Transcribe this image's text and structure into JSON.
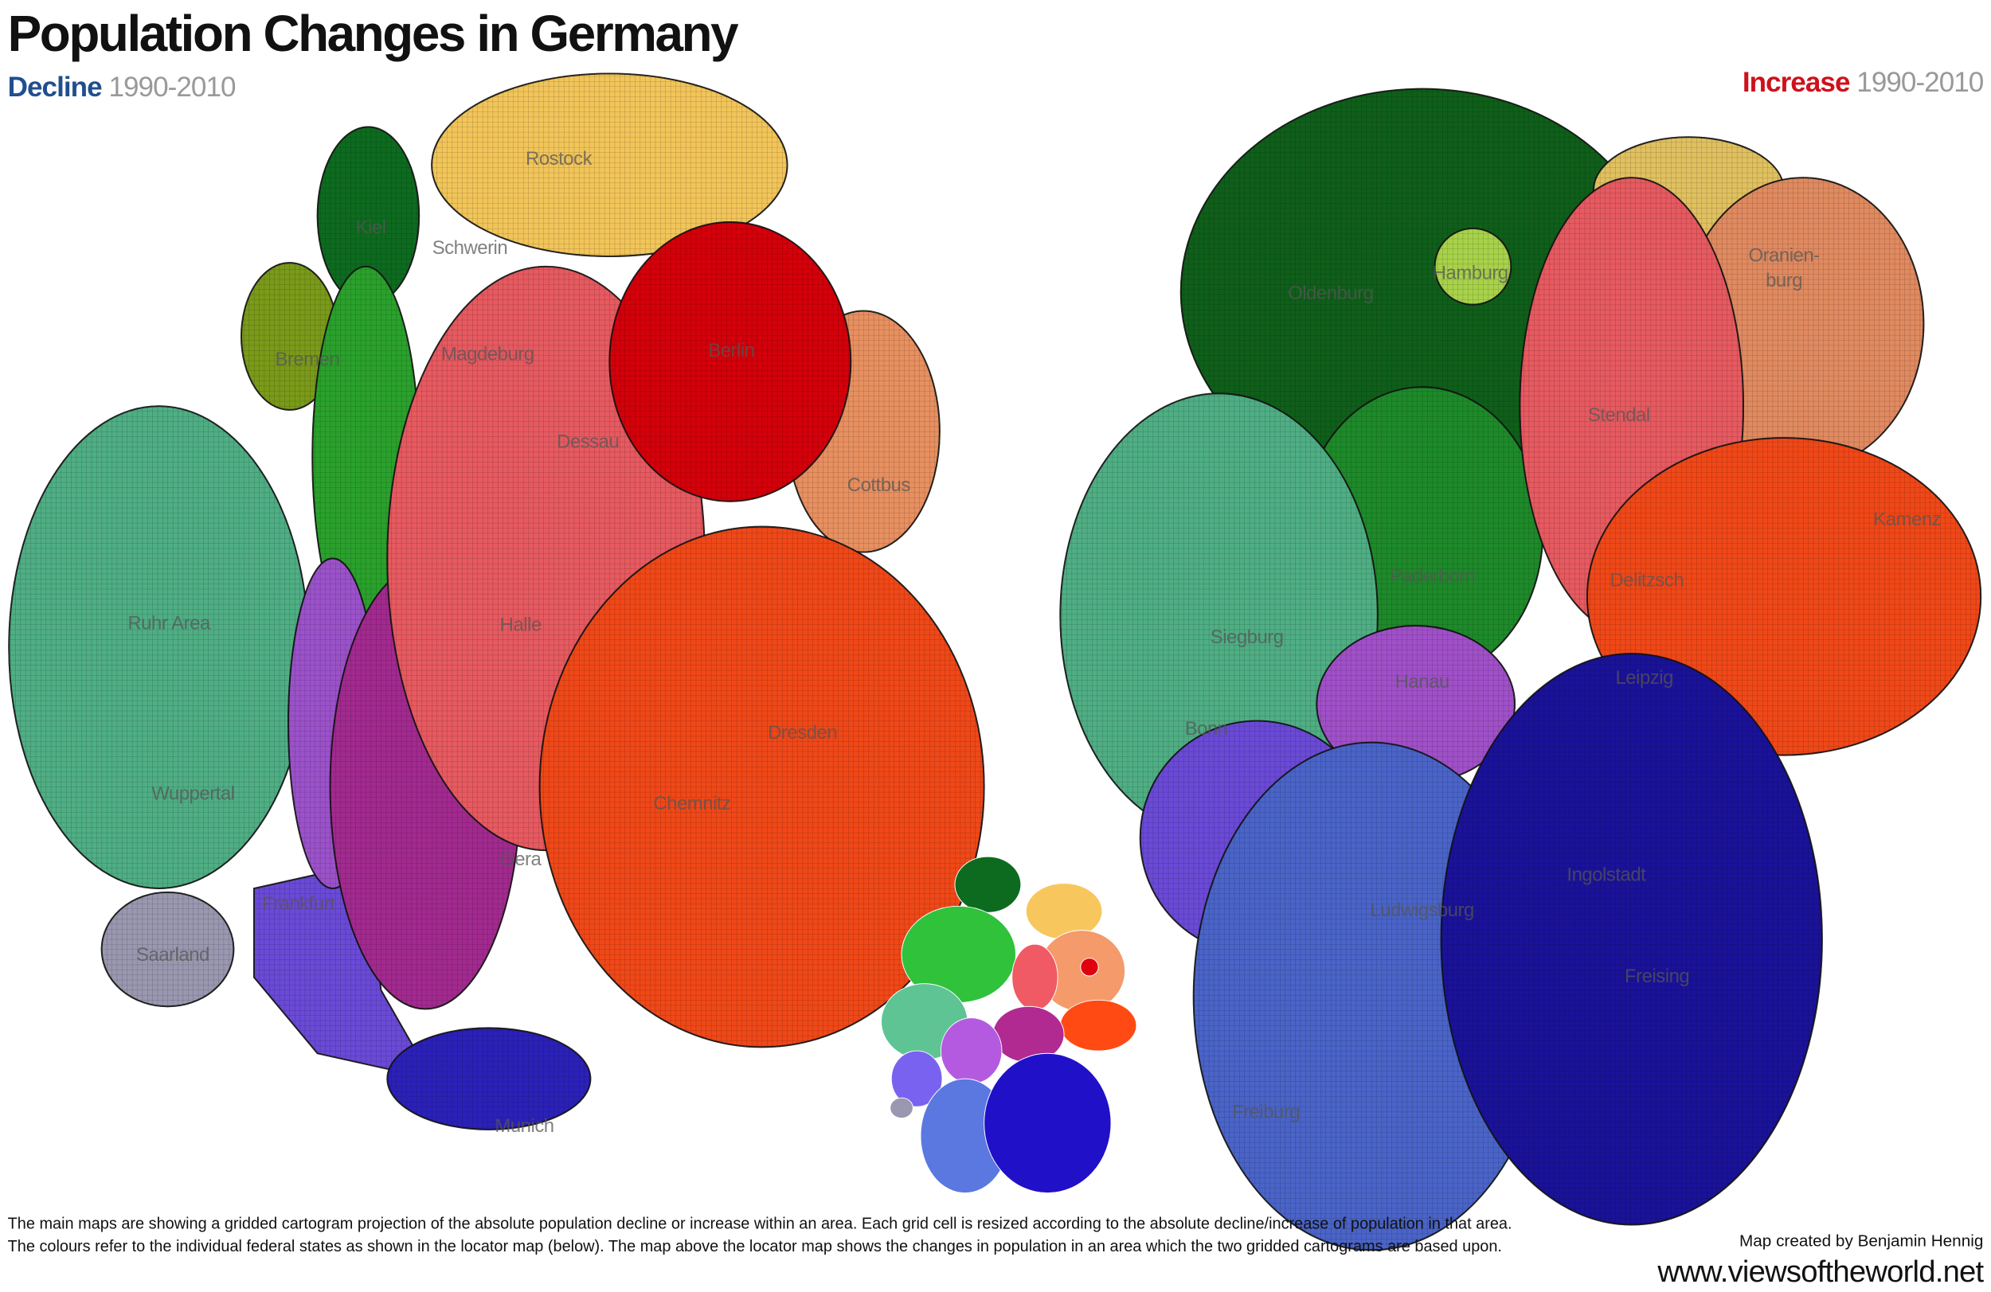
{
  "header": {
    "title": "Population Changes in Germany"
  },
  "decline_map": {
    "label": "Decline",
    "period": "1990-2010",
    "places": [
      "Rostock",
      "Kiel",
      "Schwerin",
      "Bremen",
      "Magdeburg",
      "Berlin",
      "Dessau",
      "Cottbus",
      "Ruhr Area",
      "Halle",
      "Dresden",
      "Wuppertal",
      "Chemnitz",
      "Gera",
      "Frankfurt",
      "Saarland",
      "Munich"
    ]
  },
  "increase_map": {
    "label": "Increase",
    "period": "1990-2010",
    "places": [
      "Hamburg",
      "Oldenburg",
      "Oranien-",
      "burg",
      "Stendal",
      "Kamenz",
      "Paderborn",
      "Delitzsch",
      "Siegburg",
      "Hanau",
      "Leipzig",
      "Bonn",
      "Ingolstadt",
      "Ludwigsburg",
      "Freising",
      "Freiburg"
    ]
  },
  "footnote": [
    "The main maps are showing a gridded cartogram projection of the absolute population decline or increase within an area. Each grid cell is resized according to the absolute decline/increase of population in that area.",
    "The colours refer to the individual federal states as shown in the locator map (below). The map above the locator map shows the changes in population in an area which the two gridded cartograms are based upon."
  ],
  "credit": {
    "author": "Map created by Benjamin Hennig",
    "url": "www.viewsoftheworld.net"
  }
}
